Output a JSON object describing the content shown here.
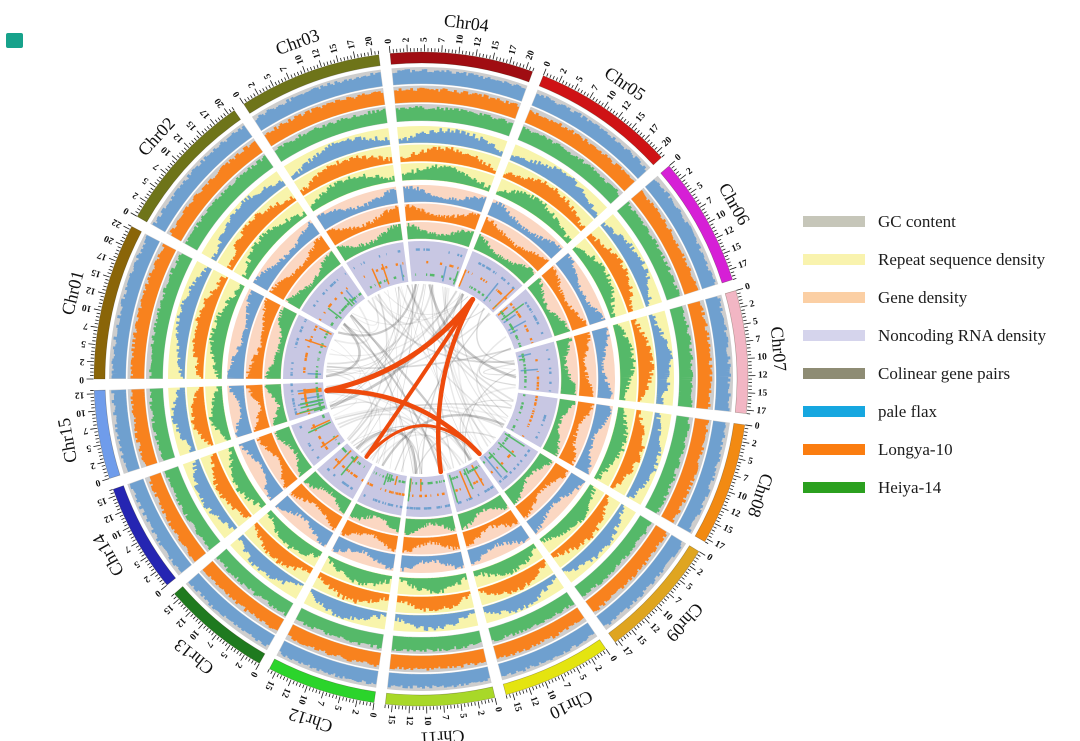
{
  "decor": {
    "corner_square_color": "#17a28b"
  },
  "legend": {
    "items": [
      {
        "label": "GC content",
        "color": "#c6c6b9"
      },
      {
        "label": "Repeat sequence density",
        "color": "#f9f3ae"
      },
      {
        "label": "Gene density",
        "color": "#fbcfa4"
      },
      {
        "label": "Noncoding RNA density",
        "color": "#d5d4ec"
      },
      {
        "label": "Colinear gene pairs",
        "color": "#8e8c74"
      },
      {
        "label": "pale flax",
        "color": "#16a7e0"
      },
      {
        "label": "Longya-10",
        "color": "#fb7d10"
      },
      {
        "label": "Heiya-14",
        "color": "#2ba01f"
      }
    ]
  },
  "chart_data": {
    "type": "circos",
    "unit": "Mb",
    "tick_interval_mb": 2.5,
    "minor_tick_mb": 0.5,
    "genomes": [
      {
        "name": "pale flax",
        "color": "#6fa0cf"
      },
      {
        "name": "Longya-10",
        "color": "#f8821e"
      },
      {
        "name": "Heiya-14",
        "color": "#55b969"
      }
    ],
    "tracks": [
      {
        "id": "gc",
        "label": "GC content",
        "bg": "#cdcdcd"
      },
      {
        "id": "repeat",
        "label": "Repeat sequence density",
        "bg": "#f8f4ab"
      },
      {
        "id": "gene",
        "label": "Gene density",
        "bg": "#fbd7c2"
      },
      {
        "id": "ncrna",
        "label": "Noncoding RNA density",
        "bg": "#c8c7e3"
      }
    ],
    "links": {
      "colinear_label": "Colinear gene pairs",
      "colinear_color": "#8e8c74",
      "gray_link_color": "#5a5a5a",
      "highlight_color": "#ee4a0c",
      "highlight_pairs_deg": [
        [
          263,
          33
        ],
        [
          263,
          142
        ],
        [
          215,
          33
        ],
        [
          33,
          168
        ],
        [
          215,
          142
        ]
      ]
    },
    "chromosomes": [
      {
        "name": "Chr01",
        "size_mb": 23,
        "color": "#8a6508",
        "tick_labels": [
          "0",
          "2",
          "5",
          "7",
          "10",
          "12",
          "15",
          "17",
          "20",
          "22"
        ]
      },
      {
        "name": "Chr02",
        "size_mb": 21,
        "color": "#6e7419",
        "tick_labels": [
          "0",
          "2",
          "5",
          "7",
          "10",
          "12",
          "15",
          "17",
          "20"
        ]
      },
      {
        "name": "Chr03",
        "size_mb": 21,
        "color": "#6e7419",
        "tick_labels": [
          "0",
          "2",
          "5",
          "7",
          "10",
          "12",
          "15",
          "17",
          "20"
        ]
      },
      {
        "name": "Chr04",
        "size_mb": 21,
        "color": "#a00d12",
        "tick_labels": [
          "0",
          "2",
          "5",
          "7",
          "10",
          "12",
          "15",
          "17",
          "20"
        ]
      },
      {
        "name": "Chr05",
        "size_mb": 21,
        "color": "#cf1215",
        "tick_labels": [
          "0",
          "2",
          "5",
          "7",
          "10",
          "12",
          "15",
          "17",
          "20"
        ]
      },
      {
        "name": "Chr06",
        "size_mb": 19,
        "color": "#d61fd6",
        "tick_labels": [
          "0",
          "2",
          "5",
          "7",
          "10",
          "12",
          "15",
          "17"
        ]
      },
      {
        "name": "Chr07",
        "size_mb": 18,
        "color": "#f2b6c4",
        "tick_labels": [
          "0",
          "2",
          "5",
          "7",
          "10",
          "12",
          "15",
          "17"
        ]
      },
      {
        "name": "Chr08",
        "size_mb": 18,
        "color": "#f28a12",
        "tick_labels": [
          "0",
          "2",
          "5",
          "7",
          "10",
          "12",
          "15",
          "17"
        ]
      },
      {
        "name": "Chr09",
        "size_mb": 18,
        "color": "#dfa520",
        "tick_labels": [
          "0",
          "2",
          "5",
          "7",
          "10",
          "12",
          "15",
          "17"
        ]
      },
      {
        "name": "Chr10",
        "size_mb": 16,
        "color": "#e4e410",
        "tick_labels": [
          "0",
          "2",
          "5",
          "7",
          "10",
          "12",
          "15"
        ]
      },
      {
        "name": "Chr11",
        "size_mb": 16,
        "color": "#a8d828",
        "tick_labels": [
          "0",
          "2",
          "5",
          "7",
          "10",
          "12",
          "15"
        ]
      },
      {
        "name": "Chr12",
        "size_mb": 16,
        "color": "#2bd42b",
        "tick_labels": [
          "0",
          "2",
          "5",
          "7",
          "10",
          "12",
          "15"
        ]
      },
      {
        "name": "Chr13",
        "size_mb": 16,
        "color": "#1f7a1f",
        "tick_labels": [
          "0",
          "2",
          "5",
          "7",
          "10",
          "12",
          "15"
        ]
      },
      {
        "name": "Chr14",
        "size_mb": 16,
        "color": "#2525b2",
        "tick_labels": [
          "0",
          "2",
          "5",
          "7",
          "10",
          "12",
          "15"
        ]
      },
      {
        "name": "Chr15",
        "size_mb": 13,
        "color": "#6f9ceb",
        "tick_labels": [
          "0",
          "2",
          "5",
          "7",
          "10",
          "12"
        ]
      }
    ]
  }
}
